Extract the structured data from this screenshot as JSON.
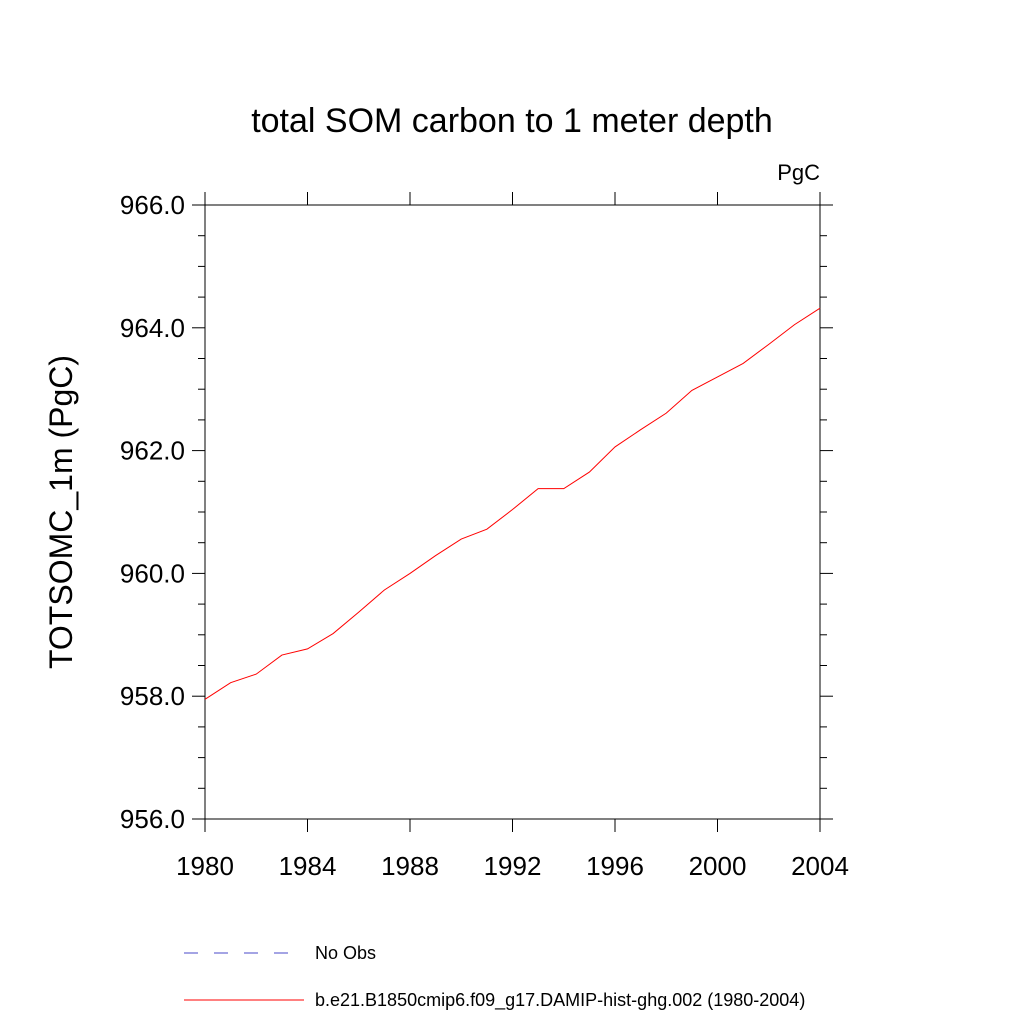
{
  "chart_data": {
    "type": "line",
    "title": "total SOM carbon to 1 meter depth",
    "units_label": "PgC",
    "xlabel": "",
    "ylabel": "TOTSOMC_1m  (PgC)",
    "xlim": [
      1980,
      2004
    ],
    "ylim": [
      956.0,
      966.0
    ],
    "x_ticks": [
      1980,
      1984,
      1988,
      1992,
      1996,
      2000,
      2004
    ],
    "x_tick_labels": [
      "1980",
      "1984",
      "1988",
      "1992",
      "1996",
      "2000",
      "2004"
    ],
    "y_ticks": [
      956.0,
      958.0,
      960.0,
      962.0,
      964.0,
      966.0
    ],
    "y_tick_labels": [
      "956.0",
      "958.0",
      "960.0",
      "962.0",
      "964.0",
      "966.0"
    ],
    "grid": false,
    "legend_position": "bottom",
    "series": [
      {
        "name": "No Obs",
        "color": "#4a4ac8",
        "style": "dashed",
        "x": [],
        "values": []
      },
      {
        "name": "b.e21.B1850cmip6.f09_g17.DAMIP-hist-ghg.002 (1980-2004)",
        "color": "#ff0000",
        "style": "solid",
        "x": [
          1980,
          1981,
          1982,
          1983,
          1984,
          1985,
          1986,
          1987,
          1988,
          1989,
          1990,
          1991,
          1992,
          1993,
          1994,
          1995,
          1996,
          1997,
          1998,
          1999,
          2000,
          2001,
          2002,
          2003,
          2004
        ],
        "values": [
          957.95,
          958.22,
          958.36,
          958.67,
          958.77,
          959.02,
          959.37,
          959.73,
          960.0,
          960.29,
          960.56,
          960.72,
          961.04,
          961.38,
          961.38,
          961.65,
          962.06,
          962.34,
          962.61,
          962.98,
          963.2,
          963.42,
          963.73,
          964.05,
          964.32
        ]
      }
    ]
  }
}
